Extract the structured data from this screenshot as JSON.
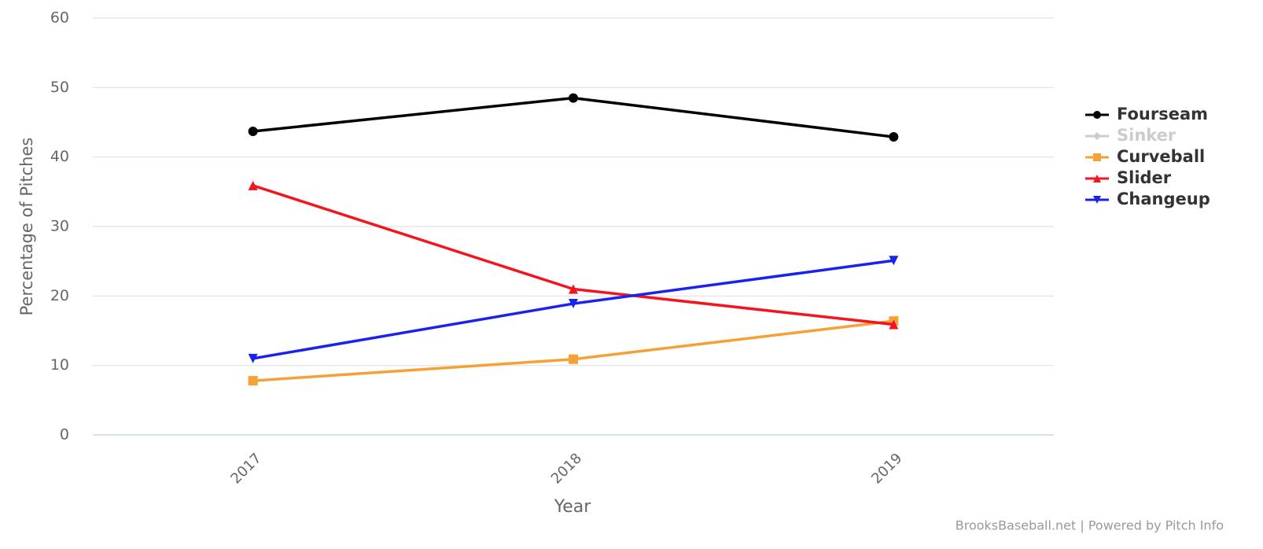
{
  "chart_data": {
    "type": "line",
    "y_label": "Percentage of Pitches",
    "x_label": "Year",
    "credit": "BrooksBaseball.net | Powered by Pitch Info",
    "categories": [
      "2017",
      "2018",
      "2019"
    ],
    "series": [
      {
        "name": "Fourseam",
        "color": "#000000",
        "symbol": "circle",
        "visible": true,
        "values": [
          43.7,
          48.5,
          42.9
        ]
      },
      {
        "name": "Sinker",
        "color": "#cccccc",
        "symbol": "diamond",
        "visible": false,
        "values": [
          null,
          null,
          null
        ]
      },
      {
        "name": "Curveball",
        "color": "#f7a035",
        "symbol": "square",
        "visible": true,
        "values": [
          7.8,
          10.9,
          16.4
        ]
      },
      {
        "name": "Slider",
        "color": "#f2141f",
        "symbol": "triangle",
        "visible": true,
        "values": [
          35.9,
          21.0,
          15.9
        ]
      },
      {
        "name": "Changeup",
        "color": "#1a22ee",
        "symbol": "triangle-down",
        "visible": true,
        "values": [
          11.0,
          18.9,
          25.1
        ]
      }
    ],
    "ylim": [
      0,
      60
    ],
    "yticks": [
      0,
      10,
      20,
      30,
      40,
      50,
      60
    ],
    "grid": true,
    "legend": "right"
  }
}
